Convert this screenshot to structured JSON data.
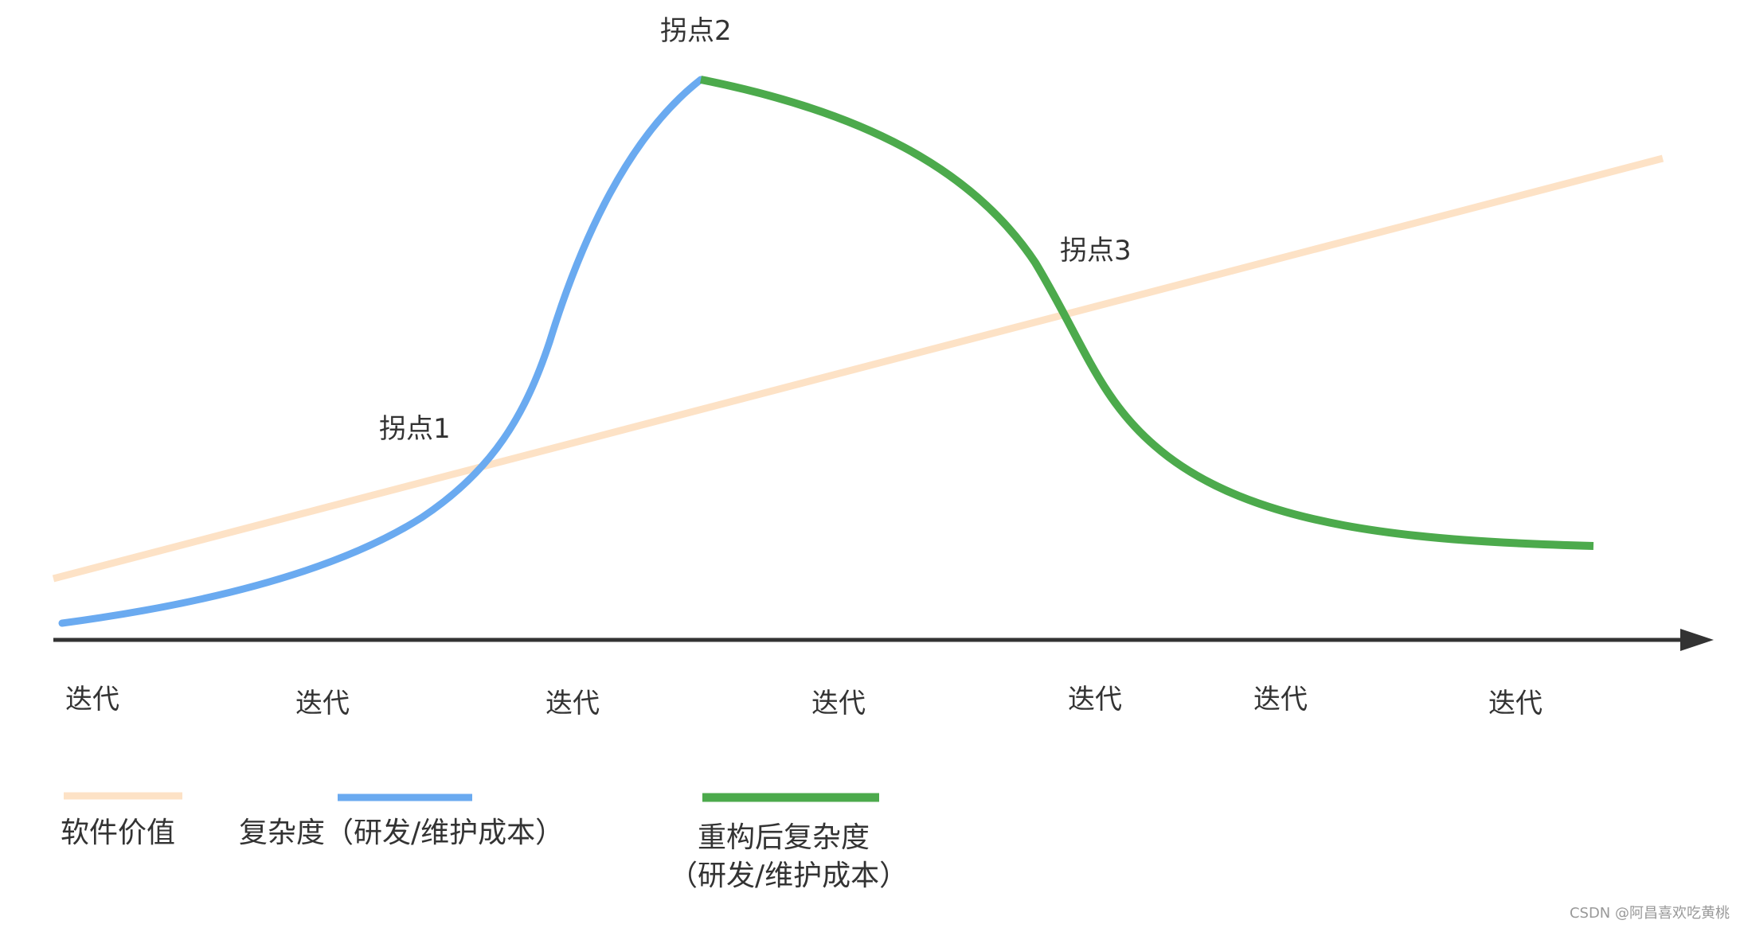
{
  "colors": {
    "value_line": "#fde2c6",
    "complexity_line": "#6aaaf0",
    "refactor_line": "#4caa4c",
    "axis": "#333333",
    "text": "#333333",
    "watermark": "#999999"
  },
  "inflection_points": {
    "p1": "拐点1",
    "p2": "拐点2",
    "p3": "拐点3"
  },
  "x_axis": {
    "ticks": [
      "迭代",
      "迭代",
      "迭代",
      "迭代",
      "迭代",
      "迭代",
      "迭代"
    ]
  },
  "legend": {
    "value": "软件价值",
    "complexity": "复杂度（研发/维护成本）",
    "refactor_line1": "重构后复杂度",
    "refactor_line2": "（研发/维护成本）"
  },
  "watermark": "CSDN @阿昌喜欢吃黄桃"
}
